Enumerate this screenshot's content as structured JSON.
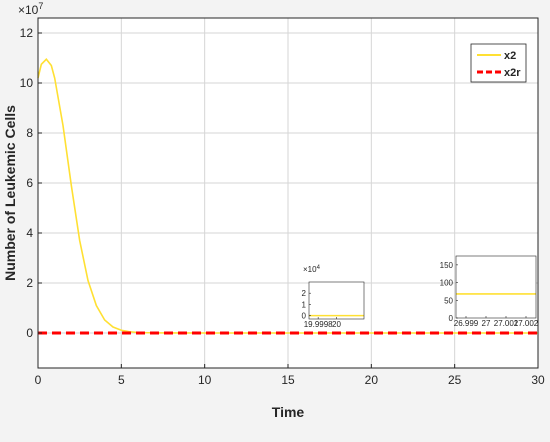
{
  "colors": {
    "x2": "#FFE033",
    "x2r": "#FF0000",
    "grid": "#d6d6d6",
    "axes_bg": "#ffffff",
    "figure_bg": "#f3f3f3"
  },
  "chart_data": {
    "type": "line",
    "title": "",
    "xlabel": "Time",
    "ylabel": "Number of Leukemic Cells",
    "y_exponent_label": "×10",
    "y_exponent_power": "7",
    "xlim": [
      0,
      30
    ],
    "ylim": [
      -1.4,
      12.6
    ],
    "x_ticks": [
      0,
      5,
      10,
      15,
      20,
      25,
      30
    ],
    "y_ticks": [
      0,
      2,
      4,
      6,
      8,
      10,
      12
    ],
    "y_scale_factor": 10000000,
    "grid": true,
    "legend_position": "top-right",
    "series": [
      {
        "name": "x2",
        "style": "solid",
        "x": [
          0,
          0.2,
          0.5,
          0.8,
          1.0,
          1.5,
          2.0,
          2.5,
          3.0,
          3.5,
          4.0,
          4.5,
          5.0,
          5.5,
          6.0,
          7.0,
          8.0,
          10,
          15,
          20,
          25,
          30
        ],
        "y": [
          10.2,
          10.75,
          10.95,
          10.7,
          10.2,
          8.3,
          5.9,
          3.7,
          2.1,
          1.1,
          0.52,
          0.24,
          0.11,
          0.05,
          0.02,
          0.005,
          0.001,
          0,
          0,
          0,
          0,
          0
        ]
      },
      {
        "name": "x2r",
        "style": "dashed",
        "x": [
          0,
          30
        ],
        "y": [
          0,
          0
        ]
      }
    ],
    "insets": [
      {
        "xlim": [
          19.9997,
          20.0003
        ],
        "ylim": [
          -0.3,
          3
        ],
        "x_ticks": [
          19.9998,
          20
        ],
        "x_tick_labels": [
          "19.9998",
          "20"
        ],
        "y_ticks": [
          0,
          1,
          2
        ],
        "y_tick_labels": [
          "0",
          "1",
          "2"
        ],
        "y_exponent_label": "×10",
        "y_exponent_power": "4",
        "series_x2_value": 0
      },
      {
        "xlim": [
          26.9985,
          27.0025
        ],
        "ylim": [
          0,
          175
        ],
        "x_ticks": [
          26.999,
          27,
          27.001,
          27.002
        ],
        "x_tick_labels": [
          "26.999",
          "27",
          "27.001",
          "27.002"
        ],
        "y_ticks": [
          0,
          50,
          100,
          150
        ],
        "y_tick_labels": [
          "0",
          "50",
          "100",
          "150"
        ],
        "series_x2_value": 68
      }
    ]
  }
}
